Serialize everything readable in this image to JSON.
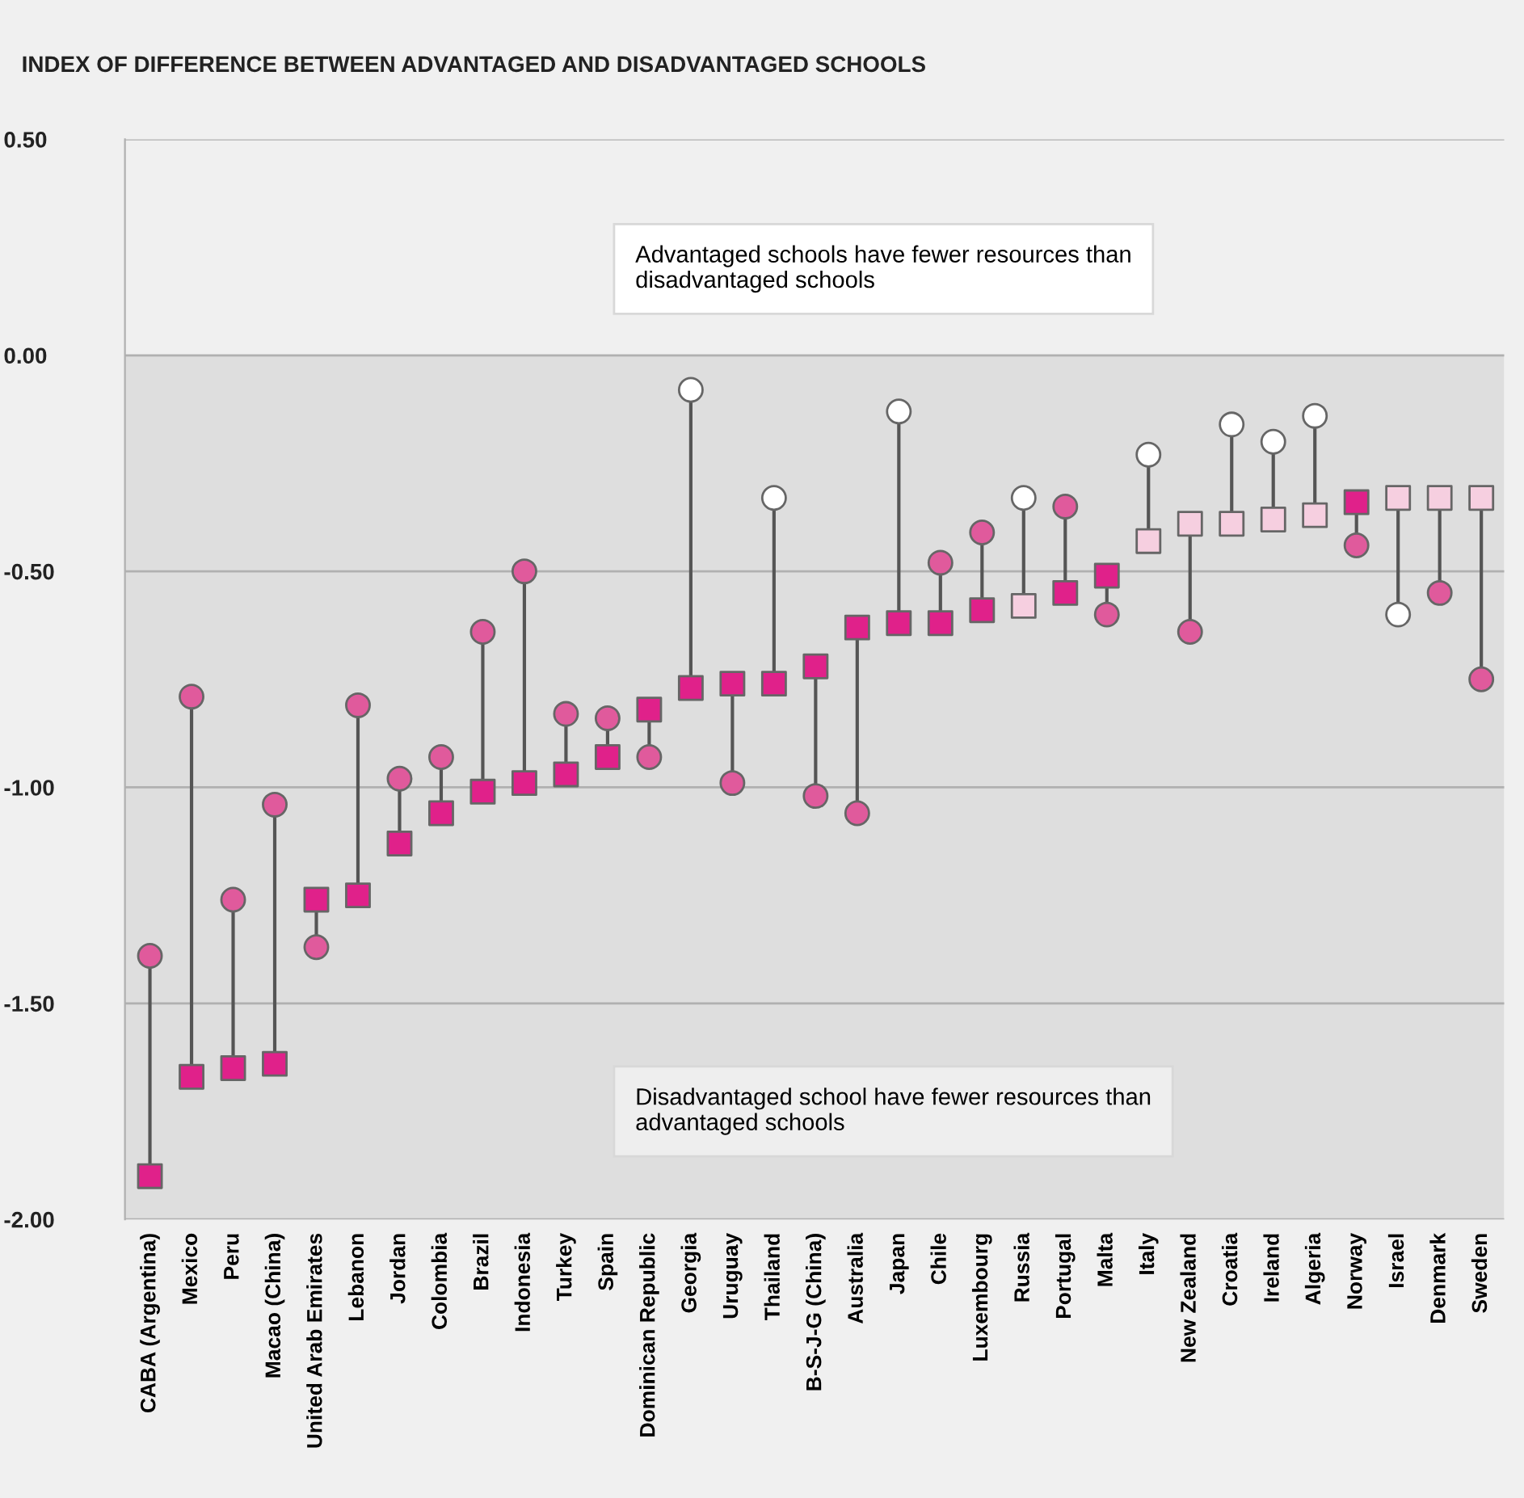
{
  "chart_data": {
    "type": "scatter",
    "title": "INDEX OF DIFFERENCE BETWEEN ADVANTAGED AND DISADVANTAGED SCHOOLS",
    "categories": [
      "CABA (Argentina)",
      "Mexico",
      "Peru",
      "Macao (China)",
      "United Arab Emirates",
      "Lebanon",
      "Jordan",
      "Colombia",
      "Brazil",
      "Indonesia",
      "Turkey",
      "Spain",
      "Dominican Republic",
      "Georgia",
      "Uruguay",
      "Thailand",
      "B-S-J-G (China)",
      "Australia",
      "Japan",
      "Chile",
      "Luxembourg",
      "Russia",
      "Portugal",
      "Malta",
      "Italy",
      "New Zealand",
      "Croatia",
      "Ireland",
      "Algeria",
      "Norway",
      "Israel",
      "Denmark",
      "Sweden"
    ],
    "series": [
      {
        "marker": "circle",
        "values": [
          -1.39,
          -0.79,
          -1.26,
          -1.04,
          -1.37,
          -0.81,
          -0.98,
          -0.93,
          -0.64,
          -0.5,
          -0.83,
          -0.84,
          -0.93,
          -0.08,
          -0.99,
          -0.33,
          -1.02,
          -1.06,
          -0.13,
          -0.48,
          -0.41,
          -0.33,
          -0.35,
          -0.6,
          -0.23,
          -0.64,
          -0.16,
          -0.2,
          -0.14,
          -0.44,
          -0.6,
          -0.55,
          -0.75
        ],
        "colors": [
          "#e05a9c",
          "#e05a9c",
          "#e05a9c",
          "#e05a9c",
          "#e05a9c",
          "#e05a9c",
          "#e05a9c",
          "#e05a9c",
          "#e05a9c",
          "#e05a9c",
          "#e05a9c",
          "#e05a9c",
          "#e05a9c",
          "#ffffff",
          "#e05a9c",
          "#ffffff",
          "#e05a9c",
          "#e05a9c",
          "#ffffff",
          "#e05a9c",
          "#e05a9c",
          "#ffffff",
          "#e05a9c",
          "#e05a9c",
          "#ffffff",
          "#e05a9c",
          "#ffffff",
          "#ffffff",
          "#ffffff",
          "#e05a9c",
          "#ffffff",
          "#e05a9c",
          "#e05a9c"
        ]
      },
      {
        "marker": "square",
        "values": [
          -1.9,
          -1.67,
          -1.65,
          -1.64,
          -1.26,
          -1.25,
          -1.13,
          -1.06,
          -1.01,
          -0.99,
          -0.97,
          -0.93,
          -0.82,
          -0.77,
          -0.76,
          -0.76,
          -0.72,
          -0.63,
          -0.62,
          -0.62,
          -0.59,
          -0.58,
          -0.55,
          -0.51,
          -0.43,
          -0.39,
          -0.39,
          -0.38,
          -0.37,
          -0.34,
          -0.33,
          -0.33,
          -0.33
        ],
        "colors": [
          "#e0218a",
          "#e0218a",
          "#e0218a",
          "#e0218a",
          "#e0218a",
          "#e0218a",
          "#e0218a",
          "#e0218a",
          "#e0218a",
          "#e0218a",
          "#e0218a",
          "#e0218a",
          "#e0218a",
          "#e0218a",
          "#e0218a",
          "#e0218a",
          "#e0218a",
          "#e0218a",
          "#e0218a",
          "#e0218a",
          "#e0218a",
          "#f6cfe0",
          "#e0218a",
          "#e0218a",
          "#f6cfe0",
          "#f6cfe0",
          "#f6cfe0",
          "#f6cfe0",
          "#f6cfe0",
          "#e0218a",
          "#f6cfe0",
          "#f6cfe0",
          "#f6cfe0"
        ]
      }
    ],
    "ylim": [
      -2,
      0.5
    ],
    "yticks": [
      {
        "value": 0.5,
        "label": "0.50"
      },
      {
        "value": 0,
        "label": "0.00"
      },
      {
        "value": -0.5,
        "label": "-0.50"
      },
      {
        "value": -1,
        "label": "-1.00"
      },
      {
        "value": -1.5,
        "label": "-1.50"
      },
      {
        "value": -2,
        "label": "-2.00"
      }
    ],
    "grid": "y",
    "bands": [
      {
        "axis": "y",
        "from": -2,
        "to": 0,
        "color": "#dedede"
      }
    ],
    "annotations": [
      "Advantaged schools have fewer resources than disadvantaged schools",
      "Disadvantaged school have fewer resources than advantaged schools"
    ]
  }
}
